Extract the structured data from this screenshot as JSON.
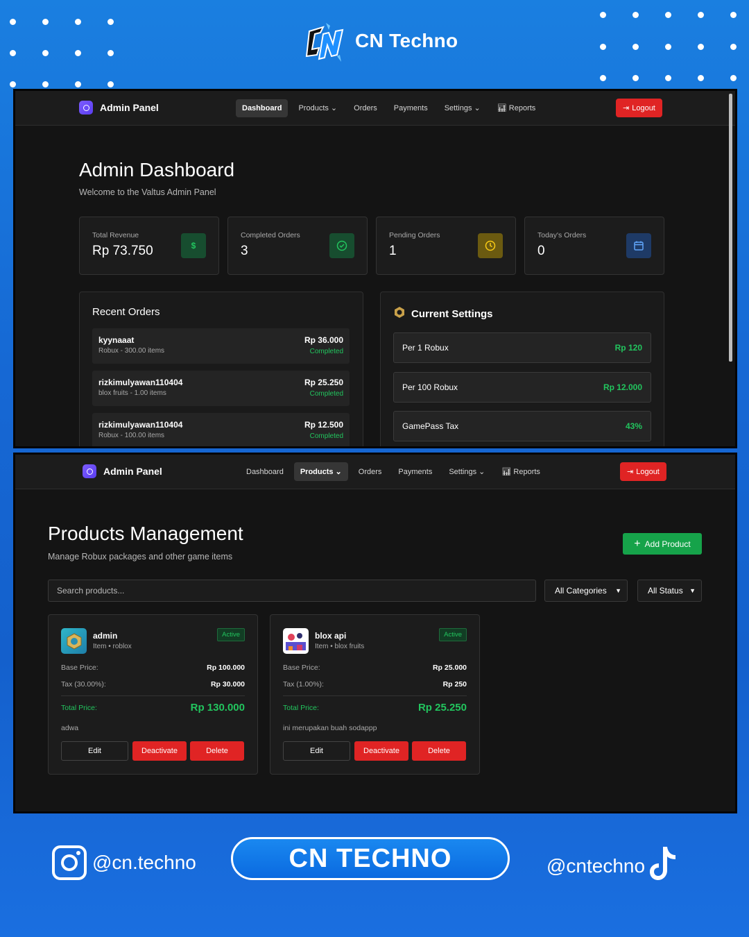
{
  "brand": {
    "name": "CN Techno"
  },
  "dashboard": {
    "nav": {
      "brand": "Admin Panel",
      "links": [
        "Dashboard",
        "Products ⌄",
        "Orders",
        "Payments",
        "Settings ⌄",
        "Reports"
      ],
      "active": "Dashboard",
      "logout": "Logout"
    },
    "title": "Admin Dashboard",
    "subtitle": "Welcome to the Valtus Admin Panel",
    "stats": [
      {
        "label": "Total Revenue",
        "value": "Rp 73.750",
        "icon": "dollar-icon",
        "color": "#16a34a"
      },
      {
        "label": "Completed Orders",
        "value": "3",
        "icon": "check-circle-icon",
        "color": "#22c55e"
      },
      {
        "label": "Pending Orders",
        "value": "1",
        "icon": "clock-icon",
        "color": "#eab308"
      },
      {
        "label": "Today's Orders",
        "value": "0",
        "icon": "calendar-icon",
        "color": "#3b82f6"
      }
    ],
    "recent_orders": {
      "title": "Recent Orders",
      "items": [
        {
          "name": "kyynaaat",
          "meta": "Robux - 300.00 items",
          "price": "Rp 36.000",
          "status": "Completed"
        },
        {
          "name": "rizkimulyawan110404",
          "meta": "blox fruits - 1.00 items",
          "price": "Rp 25.250",
          "status": "Completed"
        },
        {
          "name": "rizkimulyawan110404",
          "meta": "Robux - 100.00 items",
          "price": "Rp 12.500",
          "status": "Completed"
        }
      ]
    },
    "current_settings": {
      "title": "Current Settings",
      "items": [
        {
          "name": "Per 1 Robux",
          "value": "Rp 120"
        },
        {
          "name": "Per 100 Robux",
          "value": "Rp 12.000"
        },
        {
          "name": "GamePass Tax",
          "value": "43%"
        }
      ]
    }
  },
  "products": {
    "nav": {
      "brand": "Admin Panel",
      "links": [
        "Dashboard",
        "Products ⌄",
        "Orders",
        "Payments",
        "Settings ⌄",
        "Reports"
      ],
      "active": "Products ⌄",
      "logout": "Logout"
    },
    "title": "Products Management",
    "subtitle": "Manage Robux packages and other game items",
    "add_label": "Add Product",
    "search_placeholder": "Search products...",
    "category_filter": "All Categories",
    "status_filter": "All Status",
    "cards": [
      {
        "name": "admin",
        "sub": "Item • roblox",
        "badge": "Active",
        "base_label": "Base Price:",
        "base": "Rp 100.000",
        "tax_label": "Tax (30.00%):",
        "tax": "Rp 30.000",
        "total_label": "Total Price:",
        "total": "Rp 130.000",
        "desc": "adwa",
        "edit": "Edit",
        "deactivate": "Deactivate",
        "delete": "Delete"
      },
      {
        "name": "blox api",
        "sub": "Item • blox fruits",
        "badge": "Active",
        "base_label": "Base Price:",
        "base": "Rp 25.000",
        "tax_label": "Tax (1.00%):",
        "tax": "Rp 250",
        "total_label": "Total Price:",
        "total": "Rp 25.250",
        "desc": "ini merupakan buah sodappp",
        "edit": "Edit",
        "deactivate": "Deactivate",
        "delete": "Delete"
      }
    ]
  },
  "footer": {
    "instagram": "@cn.techno",
    "banner": "CN TECHNO",
    "tiktok": "@cntechno"
  }
}
